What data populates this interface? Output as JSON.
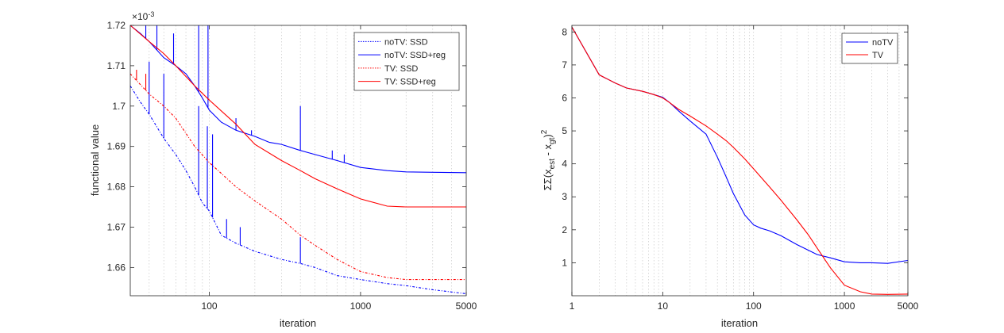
{
  "chart_data": [
    {
      "type": "line",
      "xscale": "log",
      "xlabel": "iteration",
      "ylabel": "functional value",
      "y_exponent_label": "×10^-3",
      "xlim": [
        30,
        5000
      ],
      "ylim": [
        1.653,
        1.72
      ],
      "xticks": [
        100,
        1000,
        5000
      ],
      "xtick_labels": [
        "100",
        "1000",
        "5000"
      ],
      "yticks": [
        1.66,
        1.67,
        1.68,
        1.69,
        1.7,
        1.71,
        1.72
      ],
      "ytick_labels": [
        "1.66",
        "1.67",
        "1.68",
        "1.69",
        "1.7",
        "1.71",
        "1.72"
      ],
      "grid": "vertical-minor-dotted",
      "legend_position": "top-right",
      "series": [
        {
          "name": "noTV: SSD",
          "color": "#0000ff",
          "style": "dotted",
          "x": [
            30,
            35,
            40,
            50,
            60,
            70,
            80,
            90,
            100,
            120,
            150,
            200,
            300,
            400,
            500,
            700,
            1000,
            1500,
            2000,
            3000,
            5000
          ],
          "y": [
            1.705,
            1.701,
            1.698,
            1.692,
            1.688,
            1.684,
            1.68,
            1.676,
            1.674,
            1.668,
            1.666,
            1.664,
            1.662,
            1.661,
            1.66,
            1.658,
            1.657,
            1.656,
            1.6555,
            1.6545,
            1.6535
          ],
          "spikes": [
            [
              40,
              1.711
            ],
            [
              50,
              1.708
            ],
            [
              85,
              1.7
            ],
            [
              97,
              1.695
            ],
            [
              105,
              1.693
            ],
            [
              130,
              1.672
            ],
            [
              160,
              1.67
            ],
            [
              400,
              1.6675
            ]
          ]
        },
        {
          "name": "noTV: SSD+reg",
          "color": "#0000ff",
          "style": "solid",
          "x": [
            30,
            35,
            40,
            50,
            60,
            70,
            80,
            90,
            100,
            120,
            150,
            200,
            250,
            300,
            400,
            500,
            700,
            1000,
            1500,
            2000,
            3000,
            5000
          ],
          "y": [
            1.72,
            1.718,
            1.716,
            1.712,
            1.71,
            1.708,
            1.705,
            1.702,
            1.699,
            1.696,
            1.694,
            1.6925,
            1.691,
            1.6905,
            1.689,
            1.688,
            1.6865,
            1.6848,
            1.684,
            1.6837,
            1.6836,
            1.6835
          ],
          "spikes": [
            [
              38,
              1.72
            ],
            [
              45,
              1.72
            ],
            [
              58,
              1.718
            ],
            [
              85,
              1.72
            ],
            [
              98,
              1.72
            ],
            [
              150,
              1.697
            ],
            [
              190,
              1.694
            ],
            [
              400,
              1.7
            ],
            [
              650,
              1.689
            ],
            [
              780,
              1.688
            ]
          ]
        },
        {
          "name": "TV: SSD",
          "color": "#ff0000",
          "style": "dotted",
          "x": [
            30,
            40,
            50,
            60,
            80,
            100,
            150,
            200,
            300,
            400,
            500,
            700,
            1000,
            1500,
            2000,
            3000,
            5000
          ],
          "y": [
            1.708,
            1.703,
            1.7,
            1.697,
            1.69,
            1.686,
            1.68,
            1.6765,
            1.672,
            1.668,
            1.6655,
            1.662,
            1.659,
            1.6575,
            1.657,
            1.657,
            1.657
          ],
          "spikes": [
            [
              33,
              1.709
            ],
            [
              38,
              1.708
            ]
          ]
        },
        {
          "name": "TV: SSD+reg",
          "color": "#ff0000",
          "style": "solid",
          "x": [
            30,
            40,
            50,
            60,
            80,
            100,
            150,
            200,
            300,
            400,
            500,
            700,
            1000,
            1500,
            2000,
            3000,
            5000
          ],
          "y": [
            1.72,
            1.716,
            1.713,
            1.71,
            1.705,
            1.7015,
            1.6955,
            1.6905,
            1.6865,
            1.684,
            1.682,
            1.6795,
            1.677,
            1.6752,
            1.675,
            1.675,
            1.675
          ]
        }
      ]
    },
    {
      "type": "line",
      "xscale": "log",
      "xlabel": "iteration",
      "ylabel": "ΣΣ(x_est - x_gt)^2",
      "ylabel_main": "ΣΣ(x",
      "ylabel_sub1": "est",
      "ylabel_mid": " - x",
      "ylabel_sub2": "gt",
      "ylabel_end": ")",
      "ylabel_sup": "2",
      "xlim": [
        1,
        5000
      ],
      "ylim": [
        0,
        8.2
      ],
      "xticks": [
        1,
        10,
        100,
        1000,
        5000
      ],
      "xtick_labels": [
        "1",
        "10",
        "100",
        "1000",
        "5000"
      ],
      "yticks": [
        1,
        2,
        3,
        4,
        5,
        6,
        7,
        8
      ],
      "ytick_labels": [
        "1",
        "2",
        "3",
        "4",
        "5",
        "6",
        "7",
        "8"
      ],
      "grid": "vertical-minor-dotted",
      "legend_position": "top-right",
      "series": [
        {
          "name": "noTV",
          "color": "#0000ff",
          "style": "solid",
          "x": [
            1,
            2,
            3,
            4,
            6,
            8,
            10,
            12,
            15,
            20,
            30,
            40,
            50,
            60,
            70,
            80,
            100,
            120,
            150,
            200,
            300,
            500,
            700,
            1000,
            1500,
            2000,
            3000,
            5000
          ],
          "y": [
            8.15,
            6.7,
            6.45,
            6.3,
            6.2,
            6.1,
            6.02,
            5.85,
            5.6,
            5.3,
            4.9,
            4.2,
            3.6,
            3.1,
            2.75,
            2.45,
            2.15,
            2.05,
            1.97,
            1.82,
            1.55,
            1.25,
            1.15,
            1.03,
            1.0,
            1.0,
            0.98,
            1.07
          ]
        },
        {
          "name": "TV",
          "color": "#ff0000",
          "style": "solid",
          "x": [
            1,
            2,
            3,
            4,
            6,
            8,
            10,
            12,
            15,
            20,
            30,
            40,
            50,
            60,
            80,
            100,
            150,
            200,
            300,
            400,
            500,
            700,
            1000,
            1500,
            2000,
            3000,
            5000
          ],
          "y": [
            8.15,
            6.7,
            6.45,
            6.3,
            6.2,
            6.1,
            6.0,
            5.85,
            5.65,
            5.45,
            5.15,
            4.9,
            4.7,
            4.5,
            4.15,
            3.85,
            3.3,
            2.9,
            2.3,
            1.85,
            1.45,
            0.85,
            0.32,
            0.12,
            0.05,
            0.04,
            0.05
          ]
        }
      ]
    }
  ]
}
